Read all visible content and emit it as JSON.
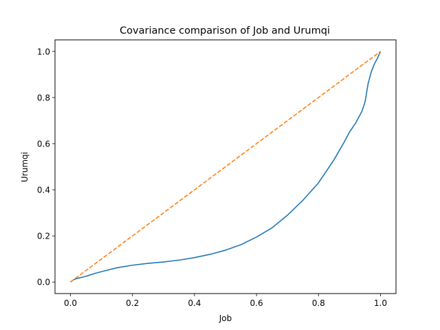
{
  "chart_data": {
    "type": "line",
    "title": "Covariance comparison of Job and Urumqi",
    "xlabel": "Job",
    "ylabel": "Urumqi",
    "xlim": [
      -0.05,
      1.05
    ],
    "ylim": [
      -0.05,
      1.05
    ],
    "xticks": [
      0.0,
      0.2,
      0.4,
      0.6,
      0.8,
      1.0
    ],
    "yticks": [
      0.0,
      0.2,
      0.4,
      0.6,
      0.8,
      1.0
    ],
    "xtick_labels": [
      "0.0",
      "0.2",
      "0.4",
      "0.6",
      "0.8",
      "1.0"
    ],
    "ytick_labels": [
      "0.0",
      "0.2",
      "0.4",
      "0.6",
      "0.8",
      "1.0"
    ],
    "grid": false,
    "legend": "none",
    "series": [
      {
        "color": "#1f77b4",
        "style": "solid",
        "x": [
          0.0,
          0.01,
          0.02,
          0.05,
          0.08,
          0.1,
          0.15,
          0.2,
          0.25,
          0.3,
          0.35,
          0.4,
          0.45,
          0.5,
          0.55,
          0.6,
          0.65,
          0.7,
          0.75,
          0.78,
          0.8,
          0.82,
          0.85,
          0.88,
          0.9,
          0.92,
          0.94,
          0.95,
          0.96,
          0.97,
          0.98,
          0.99,
          1.0
        ],
        "y": [
          0.0,
          0.01,
          0.015,
          0.025,
          0.038,
          0.045,
          0.062,
          0.073,
          0.081,
          0.087,
          0.095,
          0.106,
          0.12,
          0.138,
          0.162,
          0.195,
          0.235,
          0.29,
          0.355,
          0.4,
          0.43,
          0.47,
          0.53,
          0.6,
          0.65,
          0.69,
          0.74,
          0.78,
          0.86,
          0.91,
          0.945,
          0.97,
          1.0
        ]
      },
      {
        "color": "#ff7f0e",
        "style": "dashed",
        "x": [
          0.0,
          1.0
        ],
        "y": [
          0.0,
          1.0
        ]
      }
    ]
  }
}
